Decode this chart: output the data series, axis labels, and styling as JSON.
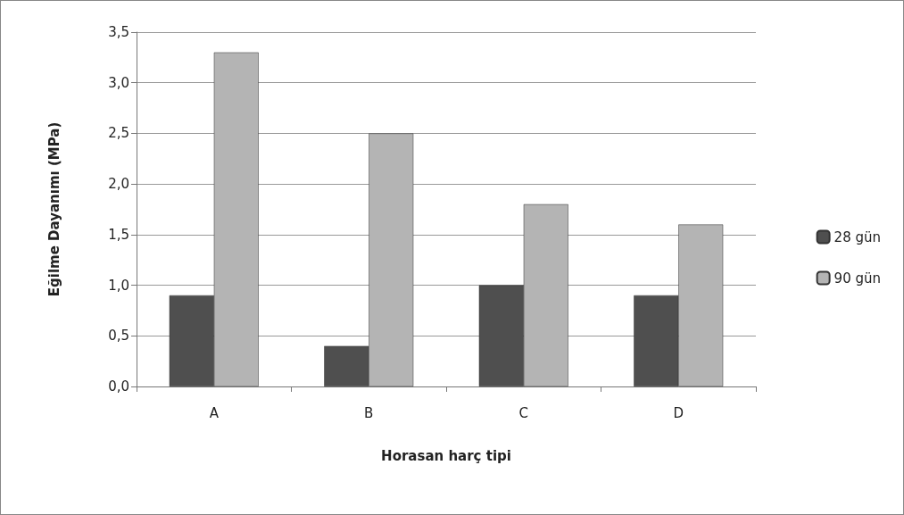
{
  "chart_data": {
    "type": "bar",
    "xlabel": "Horasan harç tipi",
    "ylabel": "Eğilme Dayanımı (MPa)",
    "categories": [
      "A",
      "B",
      "C",
      "D"
    ],
    "series": [
      {
        "name": "28 gün",
        "color": "#4f4f4f",
        "values": [
          0.9,
          0.4,
          1.0,
          0.9
        ]
      },
      {
        "name": "90 gün",
        "color": "#b4b4b4",
        "values": [
          3.3,
          2.5,
          1.8,
          1.6
        ]
      }
    ],
    "ylim": [
      0,
      3.5
    ],
    "yticks": [
      {
        "value": 0,
        "label": "0,0"
      },
      {
        "value": 0.5,
        "label": "0,5"
      },
      {
        "value": 1,
        "label": "1,0"
      },
      {
        "value": 1.5,
        "label": "1,5"
      },
      {
        "value": 2,
        "label": "2,0"
      },
      {
        "value": 2.5,
        "label": "2,5"
      },
      {
        "value": 3,
        "label": "3,0"
      },
      {
        "value": 3.5,
        "label": "3,5"
      }
    ],
    "grid": "y",
    "legend": "right"
  }
}
